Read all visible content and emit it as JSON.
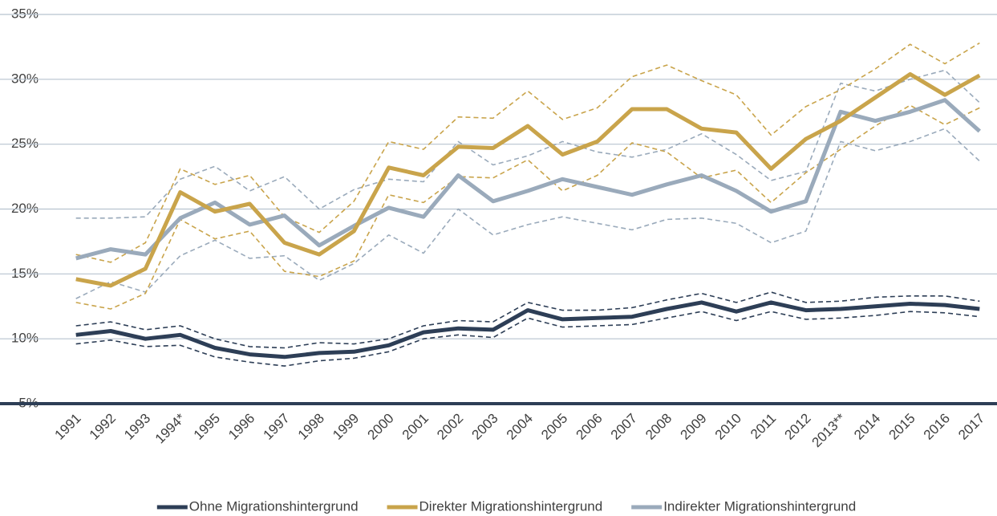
{
  "chart_data": {
    "type": "line",
    "categories": [
      "1991",
      "1992",
      "1993",
      "1994*",
      "1995",
      "1996",
      "1997",
      "1998",
      "1999",
      "2000",
      "2001",
      "2002",
      "2003",
      "2004",
      "2005",
      "2006",
      "2007",
      "2008",
      "2009",
      "2010",
      "2011",
      "2012",
      "2013**",
      "2014",
      "2015",
      "2016",
      "2017"
    ],
    "ylim": [
      5,
      35
    ],
    "yticks": [
      {
        "value": 5,
        "label": "5%"
      },
      {
        "value": 10,
        "label": "10%"
      },
      {
        "value": 15,
        "label": "15%"
      },
      {
        "value": 20,
        "label": "20%"
      },
      {
        "value": 25,
        "label": "25%"
      },
      {
        "value": 30,
        "label": "30%"
      },
      {
        "value": 35,
        "label": "35%"
      }
    ],
    "grid": true,
    "legend": "bottom",
    "series": [
      {
        "name": "Ohne Migrationshintergrund",
        "color": "#2d3e56",
        "values": [
          10.3,
          10.6,
          10.0,
          10.3,
          9.3,
          8.8,
          8.6,
          8.9,
          9.0,
          9.5,
          10.5,
          10.8,
          10.7,
          12.2,
          11.5,
          11.6,
          11.7,
          12.3,
          12.8,
          12.1,
          12.8,
          12.2,
          12.3,
          12.5,
          12.7,
          12.6,
          12.3
        ],
        "upper": [
          11.0,
          11.3,
          10.7,
          11.0,
          10.0,
          9.4,
          9.3,
          9.7,
          9.6,
          10.0,
          11.0,
          11.4,
          11.3,
          12.8,
          12.2,
          12.2,
          12.4,
          13.0,
          13.5,
          12.8,
          13.6,
          12.8,
          12.9,
          13.2,
          13.3,
          13.3,
          12.9
        ],
        "lower": [
          9.6,
          9.9,
          9.4,
          9.5,
          8.6,
          8.2,
          7.9,
          8.3,
          8.5,
          9.0,
          10.0,
          10.3,
          10.1,
          11.6,
          10.9,
          11.0,
          11.1,
          11.6,
          12.1,
          11.4,
          12.1,
          11.5,
          11.6,
          11.8,
          12.1,
          12.0,
          11.7
        ]
      },
      {
        "name": "Direkter Migrationshintergrund",
        "color": "#c9a44b",
        "values": [
          14.6,
          14.1,
          15.4,
          21.3,
          19.8,
          20.4,
          17.4,
          16.5,
          18.3,
          23.2,
          22.6,
          24.8,
          24.7,
          26.4,
          24.2,
          25.2,
          27.7,
          27.7,
          26.2,
          25.9,
          23.1,
          25.4,
          26.8,
          28.6,
          30.4,
          28.8,
          30.3
        ],
        "upper": [
          16.5,
          15.9,
          17.4,
          23.1,
          21.9,
          22.6,
          19.4,
          18.2,
          20.6,
          25.2,
          24.6,
          27.1,
          27.0,
          29.1,
          26.9,
          27.8,
          30.2,
          31.1,
          29.9,
          28.8,
          25.7,
          27.9,
          29.2,
          30.8,
          32.7,
          31.2,
          32.8
        ],
        "lower": [
          12.8,
          12.3,
          13.5,
          19.2,
          17.7,
          18.3,
          15.2,
          14.8,
          16.0,
          21.1,
          20.5,
          22.5,
          22.4,
          23.8,
          21.4,
          22.6,
          25.1,
          24.4,
          22.4,
          23.0,
          20.5,
          22.8,
          24.6,
          26.4,
          28.0,
          26.5,
          27.8
        ]
      },
      {
        "name": "Indirekter Migrationshintergrund",
        "color": "#9aaabb",
        "values": [
          16.2,
          16.9,
          16.5,
          19.3,
          20.5,
          18.8,
          19.5,
          17.2,
          18.7,
          20.1,
          19.4,
          22.6,
          20.6,
          21.4,
          22.3,
          21.7,
          21.1,
          21.9,
          22.6,
          21.4,
          19.8,
          20.6,
          27.5,
          26.8,
          27.5,
          28.4,
          26.0
        ],
        "upper": [
          19.3,
          19.3,
          19.4,
          22.3,
          23.3,
          21.4,
          22.5,
          20.0,
          21.5,
          22.3,
          22.1,
          25.2,
          23.4,
          24.1,
          25.2,
          24.4,
          24.0,
          24.6,
          25.8,
          24.2,
          22.2,
          22.9,
          29.7,
          29.1,
          30.0,
          30.7,
          28.2
        ],
        "lower": [
          13.1,
          14.4,
          13.6,
          16.4,
          17.6,
          16.2,
          16.4,
          14.5,
          15.8,
          18.0,
          16.6,
          20.0,
          18.0,
          18.8,
          19.4,
          18.9,
          18.4,
          19.2,
          19.3,
          18.9,
          17.4,
          18.3,
          25.2,
          24.5,
          25.2,
          26.2,
          23.7
        ]
      }
    ]
  }
}
